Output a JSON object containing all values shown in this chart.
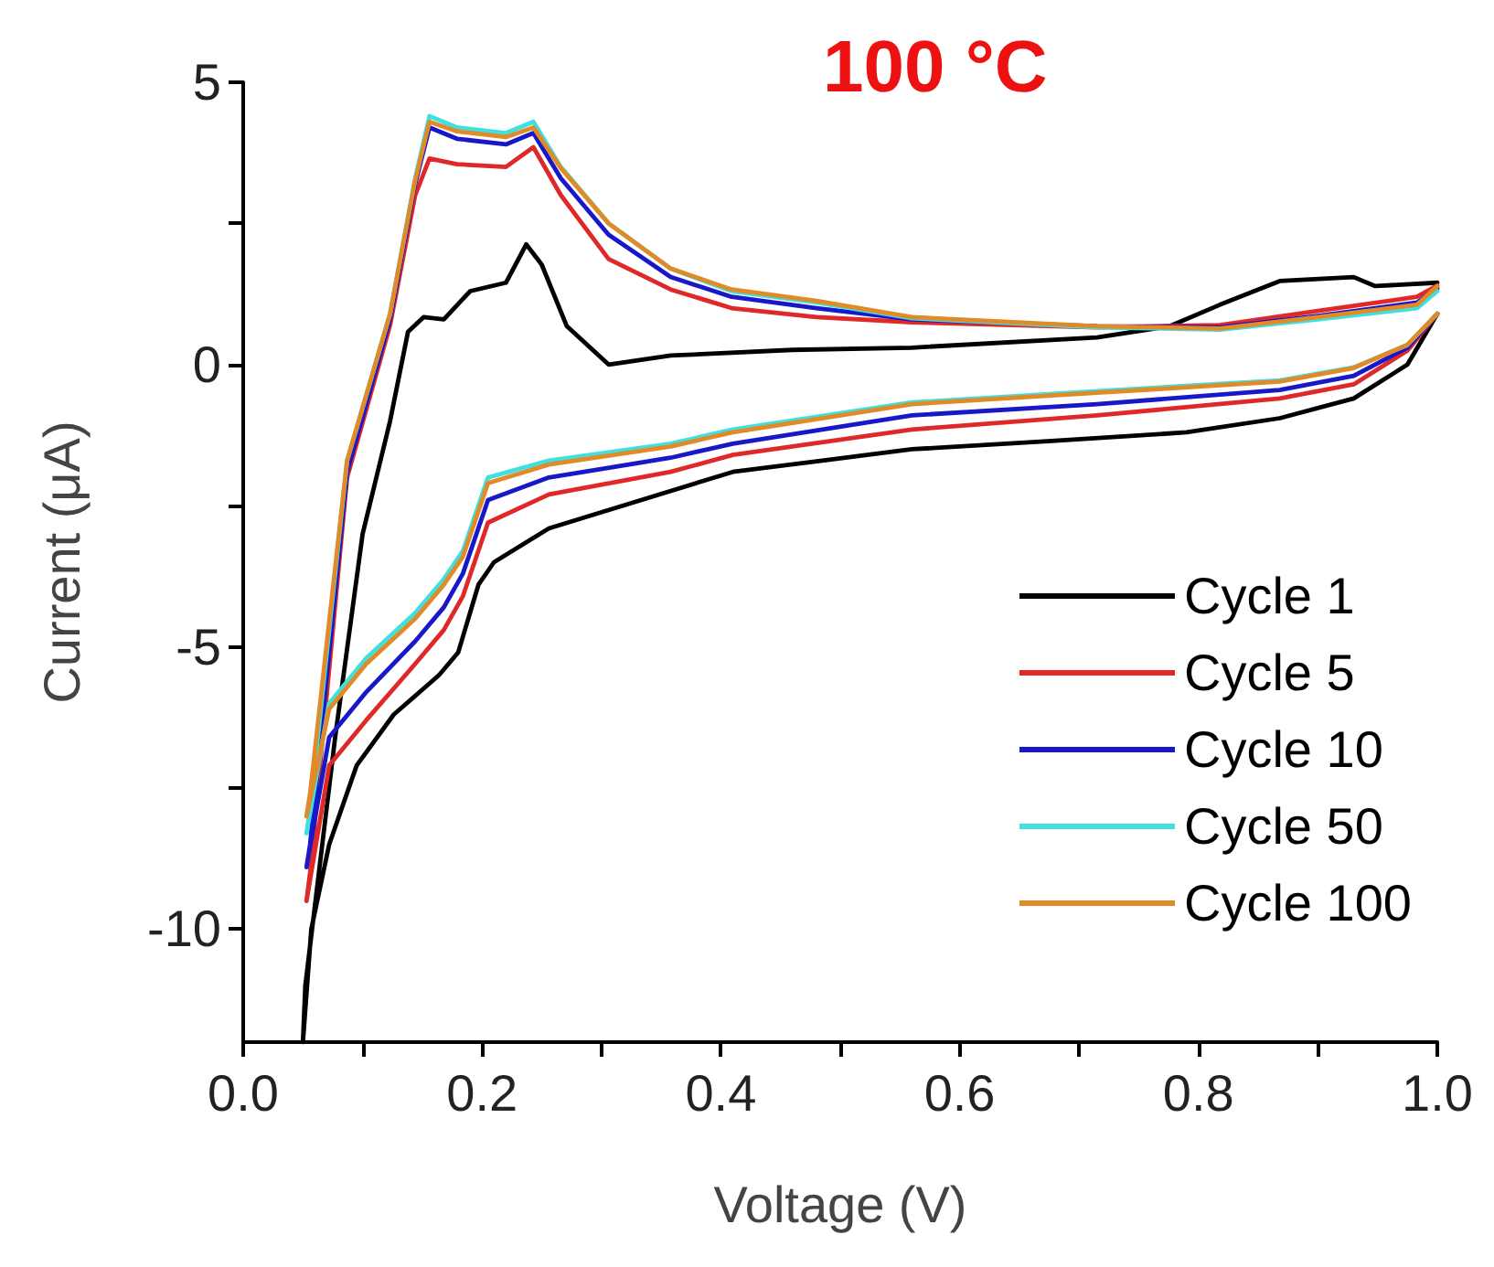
{
  "chart_data": {
    "type": "line",
    "title": "100 °C",
    "xlabel": "Voltage (V)",
    "ylabel": "Current (μA)",
    "xlim": [
      0,
      1.0
    ],
    "ylim": [
      -12,
      5
    ],
    "xticks": [
      {
        "value": 0,
        "label": "0.0"
      },
      {
        "value": 0.1,
        "label": null
      },
      {
        "value": 0.2,
        "label": "0.2"
      },
      {
        "value": 0.3,
        "label": null
      },
      {
        "value": 0.4,
        "label": "0.4"
      },
      {
        "value": 0.5,
        "label": null
      },
      {
        "value": 0.6,
        "label": "0.6"
      },
      {
        "value": 0.7,
        "label": null
      },
      {
        "value": 0.8,
        "label": "0.8"
      },
      {
        "value": 0.9,
        "label": null
      },
      {
        "value": 1.0,
        "label": "1.0"
      }
    ],
    "yticks": [
      5,
      {
        "value": 2.5,
        "label": null
      },
      0,
      {
        "value": -2.5,
        "label": null
      },
      -5,
      {
        "value": -7.5,
        "label": null
      },
      -10
    ],
    "grid": false,
    "legend": "bottom right",
    "marker": "none",
    "line_style": "solid",
    "series": [
      {
        "name": "Cycle 1",
        "color": "#000000",
        "x": [
          1.0,
          0.975,
          0.93,
          0.868,
          0.79,
          0.68,
          0.56,
          0.485,
          0.41,
          0.256,
          0.21,
          0.197,
          0.18,
          0.164,
          0.126,
          0.095,
          0.072,
          0.057,
          0.05,
          0.052,
          0.077,
          0.1,
          0.123,
          0.138,
          0.151,
          0.168,
          0.19,
          0.22,
          0.237,
          0.25,
          0.271,
          0.306,
          0.358,
          0.46,
          0.56,
          0.715,
          0.776,
          0.818,
          0.868,
          0.93,
          0.948,
          1.0
        ],
        "values": [
          0.9,
          0.0,
          -0.6,
          -0.95,
          -1.2,
          -1.35,
          -1.5,
          -1.7,
          -1.9,
          -2.9,
          -3.5,
          -3.9,
          -5.1,
          -5.5,
          -6.2,
          -7.1,
          -8.5,
          -10.0,
          -12.0,
          -11.0,
          -6.6,
          -3.0,
          -1.0,
          0.58,
          0.84,
          0.8,
          1.3,
          1.45,
          2.13,
          1.77,
          0.68,
          0.0,
          0.16,
          0.26,
          0.3,
          0.48,
          0.68,
          1.06,
          1.48,
          1.55,
          1.39,
          1.45
        ]
      },
      {
        "name": "Cycle 5",
        "color": "#e02828",
        "x": [
          1.0,
          0.975,
          0.93,
          0.868,
          0.715,
          0.56,
          0.41,
          0.358,
          0.256,
          0.205,
          0.184,
          0.168,
          0.144,
          0.103,
          0.072,
          0.053,
          0.056,
          0.087,
          0.123,
          0.144,
          0.156,
          0.179,
          0.22,
          0.243,
          0.266,
          0.306,
          0.358,
          0.409,
          0.48,
          0.56,
          0.715,
          0.818,
          0.9,
          0.983,
          1.0
        ],
        "values": [
          0.9,
          0.25,
          -0.35,
          -0.6,
          -0.9,
          -1.15,
          -1.6,
          -1.9,
          -2.3,
          -2.8,
          -4.1,
          -4.7,
          -5.3,
          -6.3,
          -7.1,
          -9.5,
          -9.0,
          -2.0,
          0.7,
          3.0,
          3.65,
          3.55,
          3.5,
          3.85,
          3.0,
          1.87,
          1.33,
          1.0,
          0.84,
          0.75,
          0.66,
          0.7,
          0.95,
          1.2,
          1.4
        ]
      },
      {
        "name": "Cycle 10",
        "color": "#1818c8",
        "x": [
          1.0,
          0.975,
          0.93,
          0.868,
          0.715,
          0.56,
          0.41,
          0.358,
          0.256,
          0.205,
          0.184,
          0.168,
          0.144,
          0.103,
          0.072,
          0.053,
          0.056,
          0.087,
          0.123,
          0.144,
          0.156,
          0.179,
          0.22,
          0.243,
          0.266,
          0.306,
          0.358,
          0.409,
          0.48,
          0.56,
          0.715,
          0.818,
          0.9,
          0.983,
          1.0
        ],
        "values": [
          0.9,
          0.3,
          -0.2,
          -0.45,
          -0.7,
          -0.9,
          -1.4,
          -1.65,
          -2.0,
          -2.4,
          -3.7,
          -4.3,
          -4.9,
          -5.8,
          -6.6,
          -8.9,
          -8.5,
          -1.9,
          0.8,
          3.2,
          4.2,
          4.0,
          3.9,
          4.1,
          3.3,
          2.3,
          1.55,
          1.2,
          1.0,
          0.8,
          0.68,
          0.66,
          0.86,
          1.1,
          1.35
        ]
      },
      {
        "name": "Cycle 50",
        "color": "#40e0e0",
        "x": [
          1.0,
          0.975,
          0.93,
          0.868,
          0.715,
          0.56,
          0.41,
          0.358,
          0.256,
          0.205,
          0.184,
          0.168,
          0.144,
          0.103,
          0.072,
          0.053,
          0.056,
          0.087,
          0.123,
          0.144,
          0.156,
          0.179,
          0.22,
          0.243,
          0.266,
          0.306,
          0.358,
          0.409,
          0.48,
          0.56,
          0.715,
          0.818,
          0.9,
          0.983,
          1.0
        ],
        "values": [
          0.9,
          0.35,
          -0.05,
          -0.28,
          -0.47,
          -0.67,
          -1.15,
          -1.4,
          -1.7,
          -2.0,
          -3.3,
          -3.8,
          -4.4,
          -5.2,
          -6.0,
          -8.3,
          -7.9,
          -1.7,
          0.9,
          3.3,
          4.4,
          4.2,
          4.1,
          4.3,
          3.5,
          2.5,
          1.7,
          1.3,
          1.1,
          0.82,
          0.66,
          0.62,
          0.8,
          1.0,
          1.3
        ]
      },
      {
        "name": "Cycle 100",
        "color": "#e08a28",
        "x": [
          1.0,
          0.975,
          0.93,
          0.868,
          0.715,
          0.56,
          0.41,
          0.358,
          0.256,
          0.205,
          0.184,
          0.168,
          0.144,
          0.103,
          0.072,
          0.053,
          0.056,
          0.087,
          0.123,
          0.144,
          0.156,
          0.179,
          0.22,
          0.243,
          0.266,
          0.306,
          0.358,
          0.409,
          0.48,
          0.56,
          0.715,
          0.818,
          0.9,
          0.983,
          1.0
        ],
        "values": [
          0.9,
          0.35,
          -0.06,
          -0.3,
          -0.5,
          -0.7,
          -1.2,
          -1.45,
          -1.77,
          -2.1,
          -3.4,
          -3.9,
          -4.5,
          -5.3,
          -6.1,
          -8.0,
          -7.6,
          -1.7,
          0.9,
          3.26,
          4.3,
          4.13,
          4.03,
          4.2,
          3.48,
          2.5,
          1.7,
          1.33,
          1.13,
          0.84,
          0.68,
          0.64,
          0.84,
          1.06,
          1.39
        ]
      }
    ]
  }
}
